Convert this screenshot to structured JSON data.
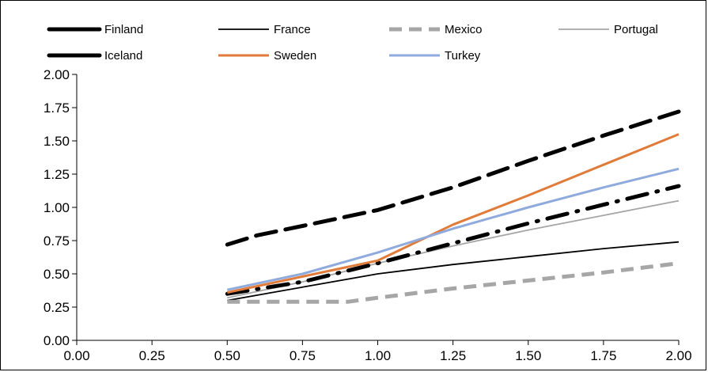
{
  "chart_data": {
    "type": "line",
    "title": "",
    "xlabel": "",
    "ylabel": "",
    "xlim": [
      0,
      2
    ],
    "ylim": [
      0,
      2
    ],
    "x_ticks": [
      "0.00",
      "0.25",
      "0.50",
      "0.75",
      "1.00",
      "1.25",
      "1.50",
      "1.75",
      "2.00"
    ],
    "y_ticks": [
      "0.00",
      "0.25",
      "0.50",
      "0.75",
      "1.00",
      "1.25",
      "1.50",
      "1.75",
      "2.00"
    ],
    "grid": false,
    "legend_position": "top",
    "series": [
      {
        "name": "Finland",
        "color": "#000000",
        "style": "long-dash-thick",
        "x": [
          0.5,
          0.6,
          0.75,
          1.0,
          1.25,
          1.5,
          1.75,
          2.0
        ],
        "y": [
          0.72,
          0.79,
          0.86,
          0.98,
          1.15,
          1.35,
          1.54,
          1.72
        ]
      },
      {
        "name": "France",
        "color": "#000000",
        "style": "solid-thin",
        "x": [
          0.5,
          0.75,
          1.0,
          1.25,
          1.5,
          1.75,
          2.0
        ],
        "y": [
          0.3,
          0.4,
          0.5,
          0.57,
          0.63,
          0.69,
          0.74
        ]
      },
      {
        "name": "Mexico",
        "color": "#a6a6a6",
        "style": "dash-thick",
        "x": [
          0.5,
          0.75,
          0.9,
          1.0,
          1.25,
          1.5,
          1.75,
          2.0
        ],
        "y": [
          0.29,
          0.29,
          0.29,
          0.32,
          0.39,
          0.45,
          0.51,
          0.58
        ]
      },
      {
        "name": "Portugal",
        "color": "#a6a6a6",
        "style": "solid-thin",
        "x": [
          0.5,
          0.75,
          1.0,
          1.25,
          1.5,
          1.75,
          2.0
        ],
        "y": [
          0.32,
          0.44,
          0.58,
          0.71,
          0.83,
          0.94,
          1.05
        ]
      },
      {
        "name": "Iceland",
        "color": "#000000",
        "style": "dash-dot-thick",
        "x": [
          0.5,
          0.75,
          1.0,
          1.25,
          1.5,
          1.75,
          2.0
        ],
        "y": [
          0.35,
          0.44,
          0.58,
          0.73,
          0.88,
          1.02,
          1.16
        ]
      },
      {
        "name": "Sweden",
        "color": "#e07b39",
        "style": "solid-medium",
        "x": [
          0.5,
          0.75,
          1.0,
          1.25,
          1.5,
          1.75,
          2.0
        ],
        "y": [
          0.36,
          0.48,
          0.6,
          0.87,
          1.09,
          1.32,
          1.55
        ]
      },
      {
        "name": "Turkey",
        "color": "#8faadc",
        "style": "solid-medium",
        "x": [
          0.5,
          0.75,
          1.0,
          1.25,
          1.5,
          1.75,
          2.0
        ],
        "y": [
          0.38,
          0.5,
          0.66,
          0.84,
          1.0,
          1.15,
          1.29
        ]
      }
    ]
  }
}
